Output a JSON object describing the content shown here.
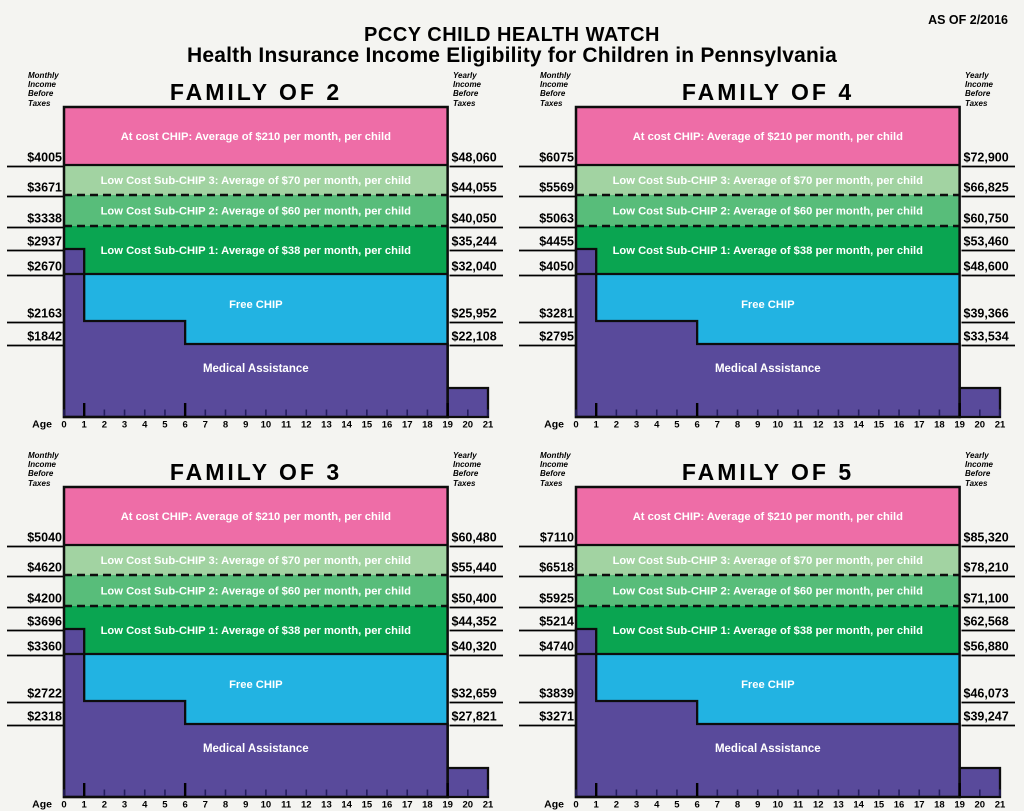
{
  "header": {
    "title_line1": "PCCY CHILD HEALTH WATCH",
    "title_line2": "Health Insurance Income Eligibility for Children in Pennsylvania",
    "as_of": "AS OF 2/2016"
  },
  "chart_meta": {
    "monthly_header": "Monthly Income Before Taxes",
    "yearly_header": "Yearly Income Before Taxes",
    "age_label": "Age",
    "age_ticks": [
      0,
      1,
      2,
      3,
      4,
      5,
      6,
      7,
      8,
      9,
      10,
      11,
      12,
      13,
      14,
      15,
      16,
      17,
      18,
      19,
      20,
      21
    ],
    "major_tick_ages": [
      1,
      6,
      19
    ],
    "band_labels": {
      "at_cost": "At cost CHIP: Average of $210 per month, per child",
      "sub3": "Low Cost Sub-CHIP 3: Average of $70 per month, per child",
      "sub2": "Low Cost Sub-CHIP 2: Average of $60 per month, per child",
      "sub1": "Low Cost Sub-CHIP 1: Average of $38 per month, per child",
      "free": "Free CHIP",
      "medical_assistance": "Medical Assistance"
    },
    "threshold_meaning": [
      "upper bound shown for At cost CHIP band",
      "Sub-CHIP 3 / At cost boundary (dashed above)",
      "Sub-CHIP 2 / Sub-CHIP 3 boundary (dashed)",
      "Medical Assistance income limit for age 0-1 (infant step)",
      "Sub-CHIP 1 lower bound / Free CHIP upper bound",
      "Medical Assistance income limit for ages 1-5",
      "Medical Assistance income limit for ages 6-18"
    ],
    "chip_age_range": [
      0,
      19
    ],
    "medicaid_strip_age_range": [
      19,
      21
    ]
  },
  "colors": {
    "at_cost_chip": "#ee6da7",
    "sub_chip_3": "#a2d3a2",
    "sub_chip_2": "#58bd7a",
    "sub_chip_1": "#0aa551",
    "free_chip": "#22b3e2",
    "medical_assistance": "#594a9b",
    "line": "#0d0d0d",
    "band_text": "#ffffff",
    "background": "#f4f4f1"
  },
  "chart_data": [
    {
      "type": "area",
      "title": "FAMILY OF 2",
      "position": "top-left",
      "monthly_labels": [
        "$4005",
        "$3671",
        "$3338",
        "$2937",
        "$2670",
        "$2163",
        "$1842"
      ],
      "yearly_labels": [
        "$48,060",
        "$44,055",
        "$40,050",
        "$35,244",
        "$32,040",
        "$25,952",
        "$22,108"
      ],
      "monthly_values": [
        4005,
        3671,
        3338,
        2937,
        2670,
        2163,
        1842
      ],
      "yearly_values": [
        48060,
        44055,
        40050,
        35244,
        32040,
        25952,
        22108
      ]
    },
    {
      "type": "area",
      "title": "FAMILY OF 4",
      "position": "top-right",
      "monthly_labels": [
        "$6075",
        "$5569",
        "$5063",
        "$4455",
        "$4050",
        "$3281",
        "$2795"
      ],
      "yearly_labels": [
        "$72,900",
        "$66,825",
        "$60,750",
        "$53,460",
        "$48,600",
        "$39,366",
        "$33,534"
      ],
      "monthly_values": [
        6075,
        5569,
        5063,
        4455,
        4050,
        3281,
        2795
      ],
      "yearly_values": [
        72900,
        66825,
        60750,
        53460,
        48600,
        39366,
        33534
      ]
    },
    {
      "type": "area",
      "title": "FAMILY OF 3",
      "position": "bottom-left",
      "monthly_labels": [
        "$5040",
        "$4620",
        "$4200",
        "$3696",
        "$3360",
        "$2722",
        "$2318"
      ],
      "yearly_labels": [
        "$60,480",
        "$55,440",
        "$50,400",
        "$44,352",
        "$40,320",
        "$32,659",
        "$27,821"
      ],
      "monthly_values": [
        5040,
        4620,
        4200,
        3696,
        3360,
        2722,
        2318
      ],
      "yearly_values": [
        60480,
        55440,
        50400,
        44352,
        40320,
        32659,
        27821
      ]
    },
    {
      "type": "area",
      "title": "FAMILY OF 5",
      "position": "bottom-right",
      "monthly_labels": [
        "$7110",
        "$6518",
        "$5925",
        "$5214",
        "$4740",
        "$3839",
        "$3271"
      ],
      "yearly_labels": [
        "$85,320",
        "$78,210",
        "$71,100",
        "$62,568",
        "$56,880",
        "$46,073",
        "$39,247"
      ],
      "monthly_values": [
        7110,
        6518,
        5925,
        5214,
        4740,
        3839,
        3271
      ],
      "yearly_values": [
        85320,
        78210,
        71100,
        62568,
        56880,
        46073,
        39247
      ]
    }
  ]
}
